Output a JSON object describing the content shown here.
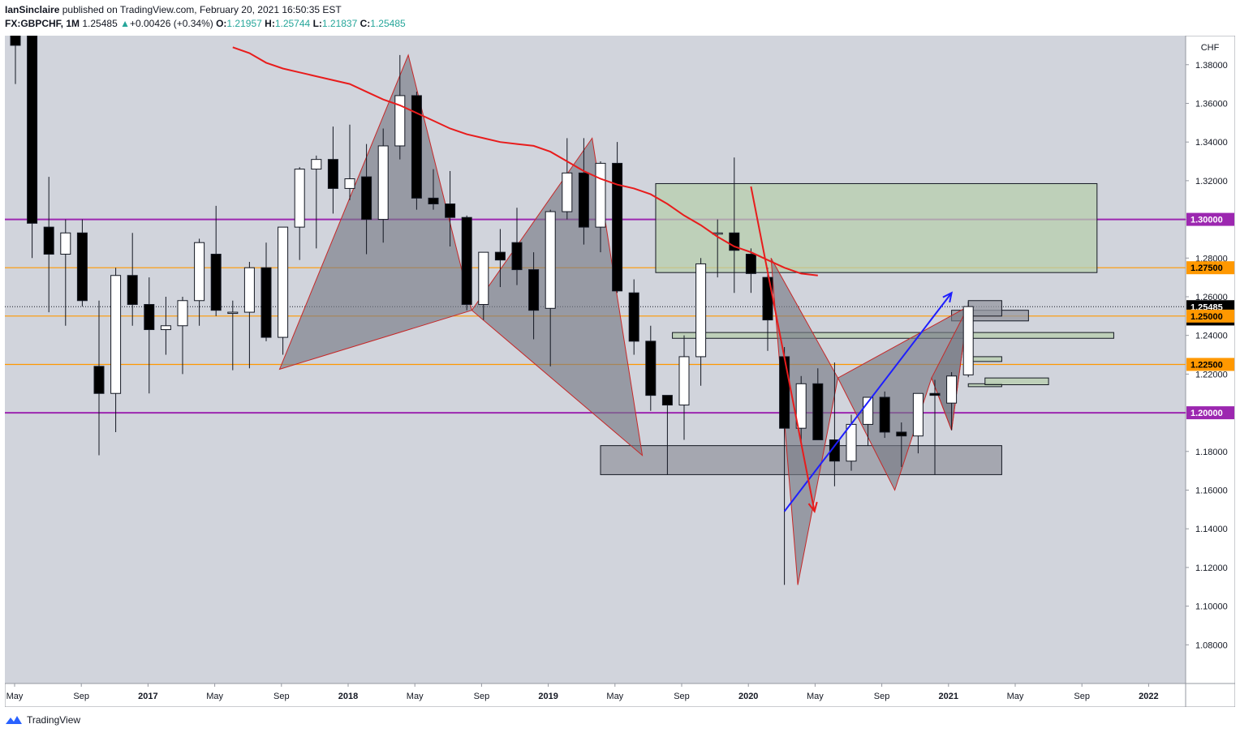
{
  "header": {
    "author": "IanSinclaire",
    "published_text": "published on TradingView.com, February 20, 2021 16:50:35 EST",
    "symbol": "FX:GBPCHF, 1M",
    "last": "1.25485",
    "change_arrow": "▲",
    "change": "+0.00426 (+0.34%)",
    "o_label": "O:",
    "o_value": "1.21957",
    "h_label": "H:",
    "h_value": "1.25744",
    "l_label": "L:",
    "l_value": "1.21837",
    "c_label": "C:",
    "c_value": "1.25485"
  },
  "footer": {
    "brand": "TradingView"
  },
  "colors": {
    "plot_bg": "#d1d4dc",
    "bull": "#ffffff",
    "bear": "#000000",
    "purple_line": "#9c27b0",
    "orange_line": "#ff9800",
    "ma_line": "#e81c1c",
    "pattern_fill": "#787b86",
    "pattern_stroke": "#c62828",
    "zone_green": "#b7cfae",
    "zone_gray": "#9598a1",
    "arrow_blue": "#1e1eff"
  },
  "chart_data": {
    "type": "candlestick",
    "interval": "1M",
    "currency": "CHF",
    "ylim": [
      1.06,
      1.395
    ],
    "y_ticks": [
      "1.08000",
      "1.10000",
      "1.12000",
      "1.14000",
      "1.16000",
      "1.18000",
      "1.20000",
      "1.22000",
      "1.24000",
      "1.26000",
      "1.28000",
      "1.30000",
      "1.32000",
      "1.34000",
      "1.36000",
      "1.38000"
    ],
    "x_ticks": [
      "May",
      "Sep",
      "2017",
      "May",
      "Sep",
      "2018",
      "May",
      "Sep",
      "2019",
      "May",
      "Sep",
      "2020",
      "May",
      "Sep",
      "2021",
      "May",
      "Sep",
      "2022"
    ],
    "price_labels": [
      {
        "text": "1.30000",
        "value": 1.3,
        "color": "#9c27b0"
      },
      {
        "text": "1.27500",
        "value": 1.275,
        "color": "#ff9800"
      },
      {
        "text": "1.25485",
        "value": 1.25485,
        "color": "#000000"
      },
      {
        "text": "6d 1h",
        "value": 1.2485,
        "color": "#000000"
      },
      {
        "text": "1.25000",
        "value": 1.25,
        "color": "#ff9800"
      },
      {
        "text": "1.22500",
        "value": 1.225,
        "color": "#ff9800"
      },
      {
        "text": "1.20000",
        "value": 1.2,
        "color": "#9c27b0"
      }
    ],
    "horizontal_lines": [
      {
        "value": 1.3,
        "color": "#9c27b0"
      },
      {
        "value": 1.2,
        "color": "#9c27b0"
      },
      {
        "value": 1.275,
        "color": "#ff9800"
      },
      {
        "value": 1.25,
        "color": "#ff9800"
      },
      {
        "value": 1.225,
        "color": "#ff9800"
      }
    ],
    "last_price": 1.25485,
    "first_month_index": 0,
    "ohlc": [
      [
        1.41,
        1.43,
        1.37,
        1.39
      ],
      [
        1.395,
        1.41,
        1.28,
        1.298
      ],
      [
        1.296,
        1.322,
        1.252,
        1.282
      ],
      [
        1.282,
        1.3,
        1.245,
        1.293
      ],
      [
        1.293,
        1.3,
        1.255,
        1.258
      ],
      [
        1.224,
        1.258,
        1.178,
        1.21
      ],
      [
        1.21,
        1.275,
        1.19,
        1.271
      ],
      [
        1.271,
        1.293,
        1.245,
        1.256
      ],
      [
        1.256,
        1.27,
        1.21,
        1.243
      ],
      [
        1.243,
        1.26,
        1.23,
        1.245
      ],
      [
        1.245,
        1.26,
        1.22,
        1.258
      ],
      [
        1.258,
        1.29,
        1.245,
        1.288
      ],
      [
        1.282,
        1.307,
        1.25,
        1.253
      ],
      [
        1.252,
        1.258,
        1.222,
        1.252
      ],
      [
        1.252,
        1.278,
        1.223,
        1.275
      ],
      [
        1.275,
        1.288,
        1.237,
        1.239
      ],
      [
        1.239,
        1.295,
        1.23,
        1.296
      ],
      [
        1.296,
        1.327,
        1.279,
        1.326
      ],
      [
        1.326,
        1.333,
        1.285,
        1.331
      ],
      [
        1.331,
        1.348,
        1.303,
        1.316
      ],
      [
        1.316,
        1.349,
        1.31,
        1.321
      ],
      [
        1.322,
        1.339,
        1.282,
        1.3
      ],
      [
        1.3,
        1.347,
        1.288,
        1.338
      ],
      [
        1.338,
        1.385,
        1.331,
        1.364
      ],
      [
        1.364,
        1.366,
        1.305,
        1.311
      ],
      [
        1.311,
        1.326,
        1.305,
        1.308
      ],
      [
        1.308,
        1.325,
        1.286,
        1.301
      ],
      [
        1.301,
        1.302,
        1.253,
        1.256
      ],
      [
        1.256,
        1.282,
        1.248,
        1.283
      ],
      [
        1.283,
        1.295,
        1.265,
        1.279
      ],
      [
        1.288,
        1.306,
        1.266,
        1.274
      ],
      [
        1.274,
        1.283,
        1.238,
        1.253
      ],
      [
        1.254,
        1.305,
        1.224,
        1.304
      ],
      [
        1.304,
        1.342,
        1.3,
        1.324
      ],
      [
        1.324,
        1.342,
        1.287,
        1.296
      ],
      [
        1.296,
        1.33,
        1.283,
        1.329
      ],
      [
        1.329,
        1.34,
        1.262,
        1.263
      ],
      [
        1.262,
        1.269,
        1.23,
        1.237
      ],
      [
        1.237,
        1.245,
        1.201,
        1.209
      ],
      [
        1.209,
        1.209,
        1.168,
        1.204
      ],
      [
        1.204,
        1.24,
        1.186,
        1.229
      ],
      [
        1.229,
        1.28,
        1.214,
        1.277
      ],
      [
        1.293,
        1.3,
        1.27,
        1.293
      ],
      [
        1.293,
        1.332,
        1.262,
        1.284
      ],
      [
        1.282,
        1.285,
        1.262,
        1.272
      ],
      [
        1.27,
        1.275,
        1.232,
        1.248
      ],
      [
        1.229,
        1.234,
        1.111,
        1.192
      ],
      [
        1.192,
        1.219,
        1.185,
        1.215
      ],
      [
        1.215,
        1.223,
        1.187,
        1.186
      ],
      [
        1.186,
        1.226,
        1.162,
        1.175
      ],
      [
        1.175,
        1.199,
        1.17,
        1.194
      ],
      [
        1.194,
        1.208,
        1.183,
        1.208
      ],
      [
        1.208,
        1.211,
        1.187,
        1.19
      ],
      [
        1.19,
        1.195,
        1.172,
        1.188
      ],
      [
        1.188,
        1.21,
        1.179,
        1.21
      ],
      [
        1.21,
        1.217,
        1.168,
        1.209
      ],
      [
        1.205,
        1.221,
        1.191,
        1.219
      ],
      [
        1.2196,
        1.2574,
        1.2184,
        1.2549
      ]
    ],
    "moving_average": {
      "start_index": 13,
      "values": [
        1.389,
        1.386,
        1.381,
        1.378,
        1.376,
        1.374,
        1.372,
        1.37,
        1.366,
        1.362,
        1.359,
        1.355,
        1.351,
        1.347,
        1.344,
        1.342,
        1.34,
        1.339,
        1.338,
        1.335,
        1.33,
        1.325,
        1.321,
        1.318,
        1.316,
        1.313,
        1.308,
        1.302,
        1.297,
        1.291,
        1.286,
        1.283,
        1.279,
        1.275,
        1.272,
        1.271
      ]
    },
    "patterns": [
      {
        "points": [
          [
            15.8,
            1.2225
          ],
          [
            23.5,
            1.385
          ],
          [
            27.3,
            1.253
          ],
          [
            15.8,
            1.2225
          ]
        ]
      },
      {
        "points": [
          [
            27.3,
            1.253
          ],
          [
            34.5,
            1.342
          ],
          [
            37.5,
            1.178
          ],
          [
            27.3,
            1.253
          ]
        ]
      },
      {
        "points": [
          [
            45.2,
            1.28
          ],
          [
            46.8,
            1.111
          ],
          [
            49.2,
            1.218
          ],
          [
            52.6,
            1.16
          ],
          [
            54.8,
            1.218
          ],
          [
            56.0,
            1.191
          ],
          [
            57.0,
            1.255
          ],
          [
            49.2,
            1.218
          ],
          [
            45.2,
            1.28
          ]
        ]
      },
      {
        "points": [
          [
            54.8,
            1.218
          ],
          [
            57.0,
            1.255
          ],
          [
            56.0,
            1.191
          ],
          [
            54.8,
            1.218
          ]
        ]
      }
    ],
    "zones": [
      {
        "x0": 38.3,
        "x1": 64.7,
        "y0": 1.3185,
        "y1": 1.2725,
        "kind": "green"
      },
      {
        "x0": 39.3,
        "x1": 65.7,
        "y0": 1.2415,
        "y1": 1.2385,
        "kind": "green"
      },
      {
        "x0": 35.0,
        "x1": 59.0,
        "y0": 1.183,
        "y1": 1.168,
        "kind": "gray"
      },
      {
        "x0": 56.0,
        "x1": 60.6,
        "y0": 1.253,
        "y1": 1.2475,
        "kind": "gray"
      },
      {
        "x0": 57.0,
        "x1": 59.0,
        "y0": 1.258,
        "y1": 1.25,
        "kind": "gray"
      },
      {
        "x0": 57.0,
        "x1": 59.0,
        "y0": 1.229,
        "y1": 1.2265,
        "kind": "green"
      },
      {
        "x0": 57.0,
        "x1": 59.0,
        "y0": 1.215,
        "y1": 1.2135,
        "kind": "green"
      },
      {
        "x0": 58.0,
        "x1": 61.8,
        "y0": 1.218,
        "y1": 1.2145,
        "kind": "green"
      }
    ],
    "arrows": [
      {
        "from": [
          46.0,
          1.149
        ],
        "to": [
          56.0,
          1.262
        ],
        "color": "#1e1eff"
      },
      {
        "from": [
          44.0,
          1.317
        ],
        "to": [
          47.8,
          1.149
        ],
        "color": "#e81c1c"
      }
    ]
  }
}
